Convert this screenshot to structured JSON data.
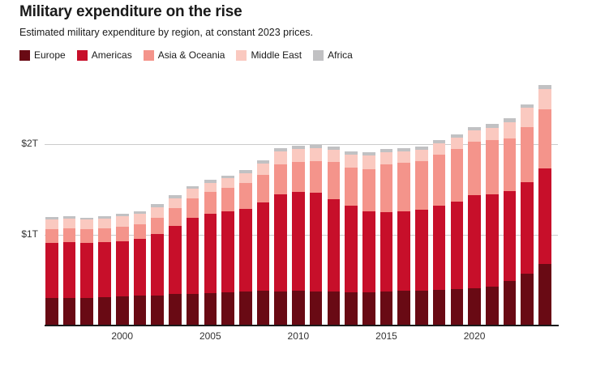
{
  "header": {
    "title": "Military expenditure on the rise",
    "subtitle": "Estimated military expenditure by region, at constant 2023 prices."
  },
  "axes": {
    "y_tick_labels": [
      "$1T",
      "$2T"
    ],
    "x_tick_labels": [
      "2000",
      "2005",
      "2010",
      "2015",
      "2020"
    ]
  },
  "colors": {
    "europe": "#690a14",
    "americas": "#c70f2a",
    "asia_oceania": "#f4948b",
    "middle_east": "#fac9c0",
    "africa": "#c1c1c3",
    "gridline": "#cbcbcb",
    "axis_line": "#1a1a1a",
    "text": "#1a1a1a"
  },
  "chart_data": {
    "type": "bar",
    "stacked": true,
    "title": "Military expenditure on the rise",
    "subtitle": "Estimated military expenditure by region, at constant 2023 prices.",
    "unit": "USD billions, constant 2023 prices",
    "legend_position": "top",
    "grid": "horizontal",
    "ylim": [
      0,
      2700
    ],
    "yticks": [
      {
        "value": 1000,
        "label": "$1T"
      },
      {
        "value": 2000,
        "label": "$2T"
      }
    ],
    "xticks": [
      2000,
      2005,
      2010,
      2015,
      2020
    ],
    "x": [
      1996,
      1997,
      1998,
      1999,
      2000,
      2001,
      2002,
      2003,
      2004,
      2005,
      2006,
      2007,
      2008,
      2009,
      2010,
      2011,
      2012,
      2013,
      2014,
      2015,
      2016,
      2017,
      2018,
      2019,
      2020,
      2021,
      2022,
      2023,
      2024
    ],
    "series": [
      {
        "name": "Europe",
        "color": "#690a14",
        "values": [
          300,
          306,
          305,
          310,
          318,
          326,
          330,
          345,
          350,
          354,
          365,
          374,
          380,
          374,
          380,
          377,
          374,
          368,
          368,
          374,
          380,
          383,
          389,
          398,
          410,
          427,
          487,
          567,
          675
        ]
      },
      {
        "name": "Americas",
        "color": "#c70f2a",
        "values": [
          610,
          610,
          602,
          606,
          614,
          626,
          680,
          755,
          840,
          880,
          892,
          912,
          980,
          1070,
          1092,
          1085,
          1020,
          950,
          890,
          880,
          880,
          893,
          932,
          968,
          1030,
          1018,
          994,
          1009,
          1060
        ]
      },
      {
        "name": "Asia & Oceania",
        "color": "#f4948b",
        "values": [
          152,
          153,
          155,
          156,
          160,
          165,
          180,
          195,
          215,
          240,
          258,
          285,
          305,
          335,
          335,
          352,
          407,
          425,
          462,
          525,
          535,
          536,
          559,
          581,
          588,
          598,
          580,
          608,
          645
        ]
      },
      {
        "name": "Middle East",
        "color": "#fac9c0",
        "values": [
          107,
          107,
          104,
          110,
          113,
          118,
          112,
          109,
          102,
          102,
          106,
          109,
          118,
          138,
          140,
          139,
          138,
          144,
          152,
          132,
          122,
          123,
          126,
          128,
          126,
          140,
          183,
          214,
          230
        ]
      },
      {
        "name": "Africa",
        "color": "#c1c1c3",
        "values": [
          27,
          29,
          24,
          23,
          24,
          23,
          36,
          32,
          33,
          29,
          29,
          36,
          36,
          39,
          36,
          39,
          38,
          36,
          36,
          36,
          36,
          36,
          36,
          36,
          36,
          37,
          38,
          39,
          42
        ]
      }
    ],
    "totals": [
      1196,
      1205,
      1190,
      1205,
      1229,
      1258,
      1338,
      1436,
      1540,
      1605,
      1650,
      1716,
      1819,
      1956,
      1983,
      1992,
      1977,
      1923,
      1908,
      1947,
      1953,
      1971,
      2042,
      2111,
      2190,
      2220,
      2282,
      2437,
      2652
    ]
  }
}
